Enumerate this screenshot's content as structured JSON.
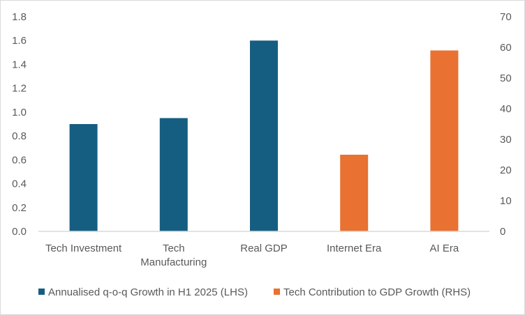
{
  "chart_data": {
    "type": "bar",
    "categories": [
      "Tech Investment",
      "Tech Manufacturing",
      "Real GDP",
      "Internet Era",
      "AI Era"
    ],
    "category_label_lines": [
      [
        "Tech Investment"
      ],
      [
        "Tech",
        "Manufacturing"
      ],
      [
        "Real GDP"
      ],
      [
        "Internet Era"
      ],
      [
        "AI Era"
      ]
    ],
    "series": [
      {
        "name": "Annualised q-o-q Growth in H1 2025 (LHS)",
        "axis": "left",
        "color": "#165e81",
        "values": [
          0.9,
          0.95,
          1.6,
          null,
          null
        ]
      },
      {
        "name": "Tech Contribution to GDP Growth (RHS)",
        "axis": "right",
        "color": "#e97132",
        "values": [
          null,
          null,
          null,
          25,
          59
        ]
      }
    ],
    "left_axis": {
      "ylim": [
        0,
        1.8
      ],
      "ticks": [
        "0.0",
        "0.2",
        "0.4",
        "0.6",
        "0.8",
        "1.0",
        "1.2",
        "1.4",
        "1.6",
        "1.8"
      ]
    },
    "right_axis": {
      "ylim": [
        0,
        70
      ],
      "ticks": [
        "0",
        "10",
        "20",
        "30",
        "40",
        "50",
        "60",
        "70"
      ]
    },
    "grid": false,
    "legend_position": "bottom"
  }
}
